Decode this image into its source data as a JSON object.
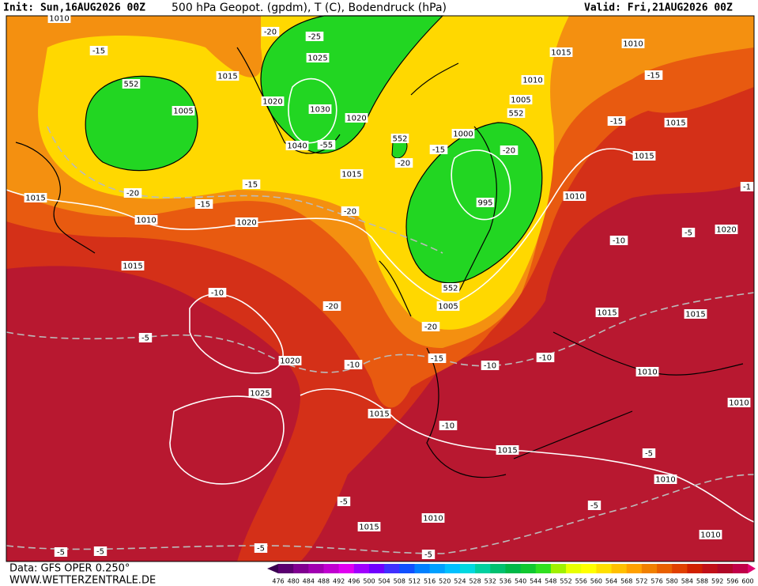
{
  "header": {
    "init": "Init: Sun,16AUG2026 00Z",
    "title": "500 hPa Geopot. (gpdm), T (C), Bodendruck (hPa)",
    "valid": "Valid: Fri,21AUG2026 00Z"
  },
  "footer": {
    "source": "Data: GFS OPER 0.250°",
    "website": "WWW.WETTERZENTRALE.DE"
  },
  "colorbar": {
    "labels": [
      476,
      480,
      484,
      488,
      492,
      496,
      500,
      504,
      508,
      512,
      516,
      520,
      524,
      528,
      532,
      536,
      540,
      544,
      548,
      552,
      556,
      560,
      564,
      568,
      572,
      576,
      580,
      584,
      588,
      592,
      596,
      600
    ]
  },
  "map": {
    "labels": [
      "1010",
      "-15",
      "552",
      "1005",
      "1015",
      "-20",
      "-25",
      "1025",
      "1020",
      "1030",
      "1020",
      "1040",
      "-55",
      "-15",
      "1015",
      "552",
      "-20",
      "-15",
      "1000",
      "-20",
      "552",
      "1005",
      "1010",
      "1015",
      "1010",
      "-15",
      "-15",
      "1015",
      "1015",
      "-20",
      "-15",
      "1015",
      "1010",
      "1020",
      "-20",
      "995",
      "1010",
      "1015",
      "-10",
      "-20",
      "552",
      "1005",
      "-20",
      "-10",
      "-5",
      "1020",
      "-1",
      "1015",
      "1015",
      "-5",
      "1020",
      "-10",
      "-15",
      "-10",
      "-10",
      "1010",
      "1025",
      "1015",
      "-10",
      "1010",
      "1015",
      "-5",
      "1010",
      "-5",
      "-5",
      "1015",
      "1010",
      "1010",
      "-5",
      "-5",
      "-5",
      "-5"
    ]
  }
}
